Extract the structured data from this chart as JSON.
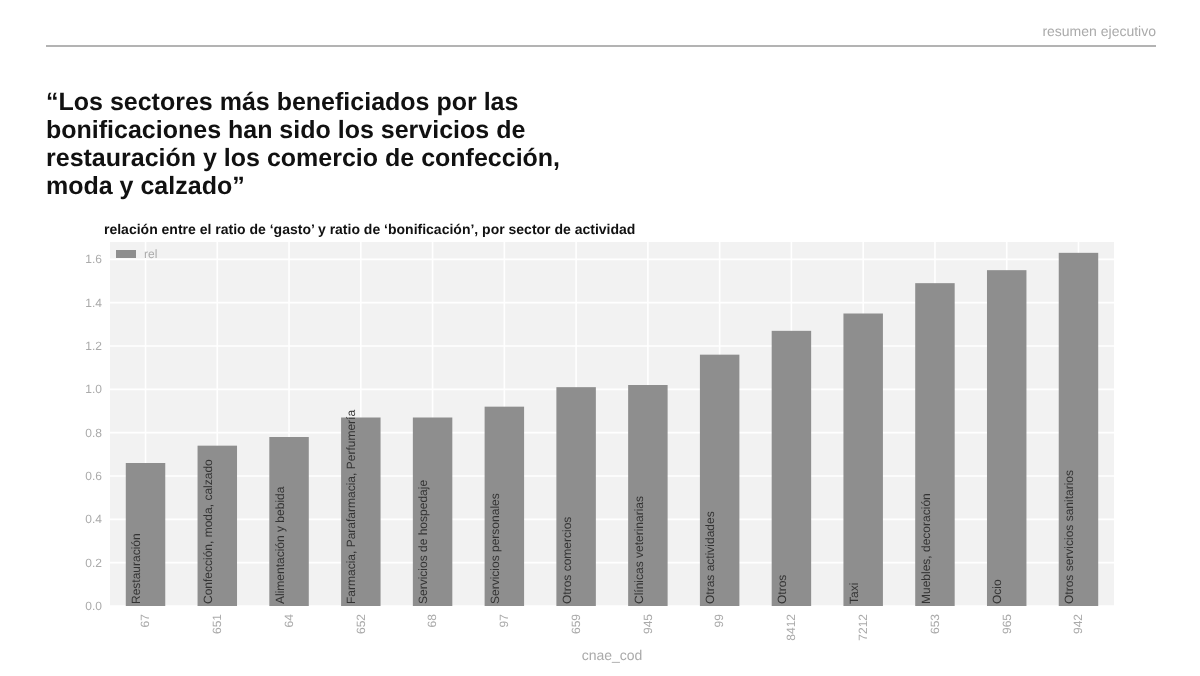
{
  "chart_data": {
    "type": "bar",
    "title": "“Los sectores más beneficiados por las bonificaciones han sido los servicios de restauración y los comercio de confección, moda y calzado”",
    "subtitle": "relación entre el ratio de ‘gasto’ y ratio de ‘bonificación’, por sector de actividad",
    "xlabel": "cnae_cod",
    "categories": [
      "67",
      "651",
      "64",
      "652",
      "68",
      "97",
      "659",
      "945",
      "99",
      "8412",
      "7212",
      "653",
      "965",
      "942"
    ],
    "series": [
      {
        "name": "rel",
        "color": "#8e8e8e",
        "values": [
          0.66,
          0.74,
          0.78,
          0.87,
          0.87,
          0.92,
          1.01,
          1.02,
          1.16,
          1.27,
          1.35,
          1.49,
          1.55,
          1.63
        ]
      }
    ],
    "ylim": [
      0,
      1.68
    ],
    "yticks": [
      {
        "value": 0,
        "label": "0.0"
      },
      0.2,
      0.4,
      0.6,
      0.8,
      {
        "value": 1,
        "label": "1.0"
      },
      1.2,
      1.4,
      1.6
    ],
    "grid": true,
    "legend": "top left",
    "annotations": [
      "resumen ejecutivo",
      {
        "text": "Restauración",
        "x": "67",
        "y": 0
      },
      {
        "text": "Confección, moda, calzado",
        "x": "651",
        "y": 0
      },
      {
        "text": "Alimentación y bebida",
        "x": "64",
        "y": 0
      },
      {
        "text": "Farmacia, Parafarmacia, Perfumería",
        "x": "652",
        "y": 0
      },
      {
        "text": "Servicios de hospedaje",
        "x": "68",
        "y": 0
      },
      {
        "text": "Servicios personales",
        "x": "97",
        "y": 0
      },
      {
        "text": "Otros comercios",
        "x": "659",
        "y": 0
      },
      {
        "text": "Clínicas veterinarias",
        "x": "945",
        "y": 0
      },
      {
        "text": "Otras actividades",
        "x": "99",
        "y": 0
      },
      {
        "text": "Otros",
        "x": "8412",
        "y": 0
      },
      {
        "text": "Taxi",
        "x": "7212",
        "y": 0
      },
      {
        "text": "Muebles, decoración",
        "x": "653",
        "y": 0
      },
      {
        "text": "Ocio",
        "x": "965",
        "y": 0
      },
      {
        "text": "Otros servicios sanitarios",
        "x": "942",
        "y": 0
      }
    ]
  }
}
